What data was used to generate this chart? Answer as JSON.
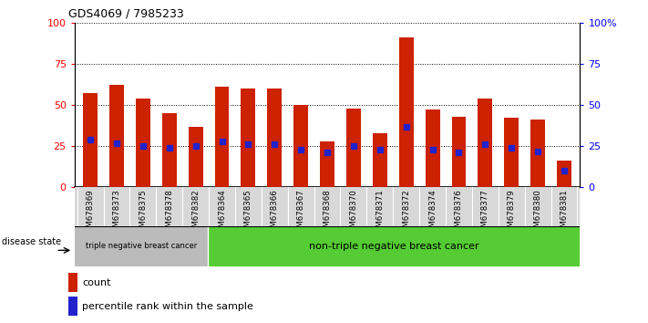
{
  "title": "GDS4069 / 7985233",
  "samples": [
    "GSM678369",
    "GSM678373",
    "GSM678375",
    "GSM678378",
    "GSM678382",
    "GSM678364",
    "GSM678365",
    "GSM678366",
    "GSM678367",
    "GSM678368",
    "GSM678370",
    "GSM678371",
    "GSM678372",
    "GSM678374",
    "GSM678376",
    "GSM678377",
    "GSM678379",
    "GSM678380",
    "GSM678381"
  ],
  "counts": [
    57,
    62,
    54,
    45,
    37,
    61,
    60,
    60,
    50,
    28,
    48,
    33,
    91,
    47,
    43,
    54,
    42,
    41,
    16
  ],
  "percentiles": [
    29,
    27,
    25,
    24,
    25,
    28,
    26,
    26,
    23,
    21,
    25,
    23,
    37,
    23,
    21,
    26,
    24,
    22,
    10
  ],
  "bar_color": "#CC2200",
  "dot_color": "#2222CC",
  "group1_label": "triple negative breast cancer",
  "group1_count": 5,
  "group2_label": "non-triple negative breast cancer",
  "group2_count": 14,
  "group1_bg": "#BBBBBB",
  "group2_bg": "#55CC33",
  "disease_label": "disease state",
  "legend_count": "count",
  "legend_percentile": "percentile rank within the sample",
  "ylim": [
    0,
    100
  ],
  "background_color": "#FFFFFF"
}
